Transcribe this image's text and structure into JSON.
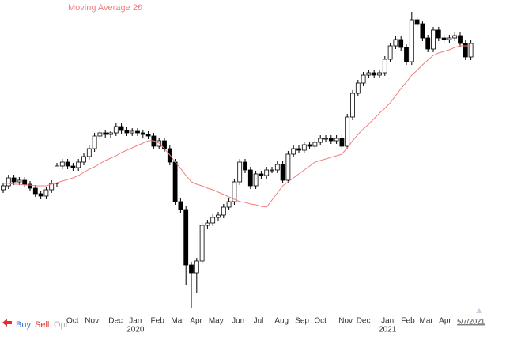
{
  "chart_data": {
    "type": "candlestick",
    "indicator_label": "Moving Average 20",
    "ylim": [
      0,
      400
    ],
    "up_color": "#ffffff",
    "down_color": "#000000",
    "ma_color": "#f08080",
    "open": [
      160,
      165,
      175,
      170,
      172,
      167,
      162,
      155,
      152,
      160,
      168,
      190,
      195,
      190,
      188,
      195,
      202,
      212,
      228,
      232,
      230,
      232,
      240,
      235,
      232,
      234,
      232,
      230,
      228,
      215,
      222,
      212,
      195,
      145,
      135,
      65,
      55,
      70,
      115,
      118,
      125,
      128,
      138,
      145,
      170,
      195,
      185,
      165,
      180,
      178,
      185,
      185,
      192,
      172,
      205,
      212,
      210,
      217,
      215,
      220,
      225,
      225,
      222,
      225,
      215,
      252,
      282,
      295,
      305,
      308,
      305,
      308,
      325,
      342,
      350,
      340,
      322,
      375,
      370,
      352,
      338,
      362,
      352,
      350,
      352,
      355,
      345,
      328
    ],
    "high": [
      169,
      179,
      179,
      176,
      176,
      171,
      166,
      159,
      164,
      172,
      194,
      199,
      199,
      194,
      199,
      206,
      216,
      232,
      236,
      236,
      234,
      244,
      244,
      239,
      238,
      238,
      236,
      234,
      232,
      226,
      226,
      216,
      199,
      149,
      139,
      69,
      74,
      119,
      122,
      129,
      132,
      142,
      149,
      174,
      199,
      199,
      189,
      184,
      184,
      189,
      189,
      196,
      196,
      209,
      216,
      216,
      221,
      221,
      224,
      229,
      229,
      229,
      229,
      229,
      256,
      286,
      299,
      309,
      312,
      312,
      312,
      329,
      346,
      354,
      354,
      344,
      385,
      379,
      374,
      356,
      366,
      366,
      356,
      356,
      359,
      359,
      349,
      349
    ],
    "low": [
      156,
      161,
      166,
      166,
      163,
      158,
      151,
      148,
      148,
      156,
      164,
      186,
      186,
      184,
      184,
      191,
      198,
      208,
      224,
      226,
      226,
      228,
      231,
      228,
      228,
      228,
      226,
      224,
      211,
      211,
      208,
      191,
      141,
      131,
      40,
      10,
      30,
      66,
      111,
      114,
      121,
      124,
      134,
      141,
      166,
      181,
      161,
      161,
      174,
      174,
      181,
      181,
      168,
      168,
      201,
      206,
      206,
      211,
      211,
      216,
      221,
      218,
      218,
      211,
      211,
      248,
      278,
      291,
      301,
      301,
      301,
      304,
      321,
      338,
      336,
      318,
      318,
      366,
      348,
      334,
      334,
      348,
      346,
      346,
      348,
      341,
      324,
      324
    ],
    "close": [
      165,
      175,
      170,
      172,
      167,
      162,
      155,
      152,
      160,
      168,
      190,
      195,
      190,
      188,
      195,
      202,
      212,
      228,
      232,
      230,
      232,
      240,
      235,
      232,
      234,
      232,
      230,
      228,
      215,
      222,
      212,
      195,
      145,
      135,
      65,
      55,
      70,
      115,
      118,
      125,
      128,
      138,
      145,
      170,
      195,
      185,
      165,
      180,
      178,
      185,
      185,
      192,
      172,
      205,
      212,
      210,
      217,
      215,
      220,
      225,
      225,
      222,
      225,
      215,
      252,
      282,
      295,
      305,
      308,
      305,
      308,
      325,
      342,
      350,
      340,
      322,
      375,
      370,
      352,
      338,
      362,
      352,
      350,
      352,
      355,
      345,
      328,
      345
    ],
    "moving_average": [
      168,
      168,
      167,
      167,
      166,
      166,
      165,
      165,
      165,
      167,
      169,
      171,
      173,
      175,
      178,
      182,
      186,
      189,
      193,
      197,
      200,
      203,
      207,
      210,
      213,
      216,
      219,
      222,
      222,
      219,
      212,
      204,
      195,
      187,
      178,
      170,
      167,
      165,
      162,
      160,
      157,
      154,
      151,
      148,
      145,
      144,
      142,
      141,
      139,
      138,
      147,
      156,
      165,
      170,
      175,
      180,
      185,
      190,
      195,
      197,
      199,
      201,
      203,
      205,
      213,
      222,
      230,
      237,
      243,
      250,
      257,
      263,
      270,
      279,
      288,
      296,
      305,
      311,
      318,
      324,
      330,
      333,
      335,
      337,
      340,
      342,
      342,
      342
    ],
    "xticks": [
      {
        "value": 12.9,
        "label": "Oct"
      },
      {
        "value": 16.5,
        "label": "Nov"
      },
      {
        "value": 20.9,
        "label": "Dec"
      },
      {
        "value": 24.6,
        "label": "Jan"
      },
      {
        "value": 28.7,
        "label": "Feb"
      },
      {
        "value": 32.5,
        "label": "Mar"
      },
      {
        "value": 35.9,
        "label": "Apr"
      },
      {
        "value": 39.6,
        "label": "May"
      },
      {
        "value": 43.7,
        "label": "Jun"
      },
      {
        "value": 47.5,
        "label": "Jul"
      },
      {
        "value": 51.8,
        "label": "Aug"
      },
      {
        "value": 55.6,
        "label": "Sep"
      },
      {
        "value": 59,
        "label": "Oct"
      },
      {
        "value": 63.7,
        "label": "Nov"
      },
      {
        "value": 67,
        "label": "Dec"
      },
      {
        "value": 71.5,
        "label": "Jan"
      },
      {
        "value": 75.3,
        "label": "Feb"
      },
      {
        "value": 78.7,
        "label": "Mar"
      },
      {
        "value": 82.2,
        "label": "Apr"
      }
    ],
    "year_labels": [
      {
        "value": 24.6,
        "label": "2020"
      },
      {
        "value": 71.5,
        "label": "2021"
      }
    ],
    "last_date": {
      "value": 87,
      "label": "5/7/2021"
    }
  },
  "toolbar": {
    "buy": "Buy",
    "sell": "Sell",
    "opt": "Opt"
  }
}
